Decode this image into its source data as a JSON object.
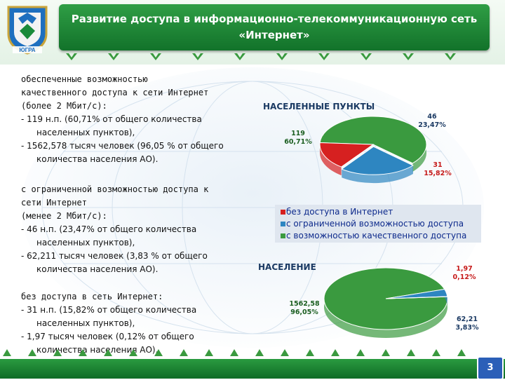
{
  "title": {
    "line1": "Развитие доступа в информационно-телекоммуникационную сеть",
    "line2": "«Интернет»"
  },
  "emblem": {
    "caption": "ЮГРА"
  },
  "text_blocks": [
    {
      "heading": [
        "обеспеченные возможностью",
        "качественного доступа к сети Интернет",
        "(более 2 Мбит/с):"
      ],
      "items": [
        "-    119 н.п. (60,71% от общего количества населенных пунктов),",
        "-    1562,578 тысяч человек (96,05 % от общего количества населения АО)."
      ]
    },
    {
      "heading": [
        "с ограниченной возможностью доступа к",
        "сети Интернет",
        "(менее 2 Мбит/с):"
      ],
      "items": [
        "-    46 н.п. (23,47% от общего количества населенных пунктов),",
        "-    62,211 тысяч человек (3,83 % от общего количества населения АО)."
      ]
    },
    {
      "heading": [
        "без доступа в сеть Интернет:"
      ],
      "items": [
        "-    31 н.п. (15,82% от общего количества населенных пунктов),",
        "-    1,97 тысяч человек (0,12% от общего количества населения АО)."
      ]
    }
  ],
  "colors": {
    "green": "#3a9a3f",
    "blue": "#2e86c1",
    "red": "#d62020",
    "navy": "#1b3a63"
  },
  "chart_data": [
    {
      "type": "pie",
      "title": "НАСЕЛЕННЫЕ ПУНКТЫ",
      "slices": [
        {
          "value": 119,
          "percent": "60,71%",
          "label": "119",
          "color": "#3a9a3f"
        },
        {
          "value": 46,
          "percent": "23,47%",
          "label": "46",
          "color": "#2e86c1"
        },
        {
          "value": 31,
          "percent": "15,82%",
          "label": "31",
          "color": "#d62020"
        }
      ]
    },
    {
      "type": "pie",
      "title": "НАСЕЛЕНИЕ",
      "slices": [
        {
          "value": 1562.58,
          "percent": "96,05%",
          "label": "1562,58",
          "color": "#3a9a3f"
        },
        {
          "value": 62.21,
          "percent": "3,83%",
          "label": "62,21",
          "color": "#2e86c1"
        },
        {
          "value": 1.97,
          "percent": "0,12%",
          "label": "1,97",
          "color": "#d62020"
        }
      ]
    }
  ],
  "legend": [
    {
      "label": "без доступа в Интернет",
      "color": "#d62020"
    },
    {
      "label": "с ограниченной возможностью доступа",
      "color": "#2e86c1"
    },
    {
      "label": "с возможностью качественного доступа",
      "color": "#3a9a3f"
    }
  ],
  "page_number": "3"
}
